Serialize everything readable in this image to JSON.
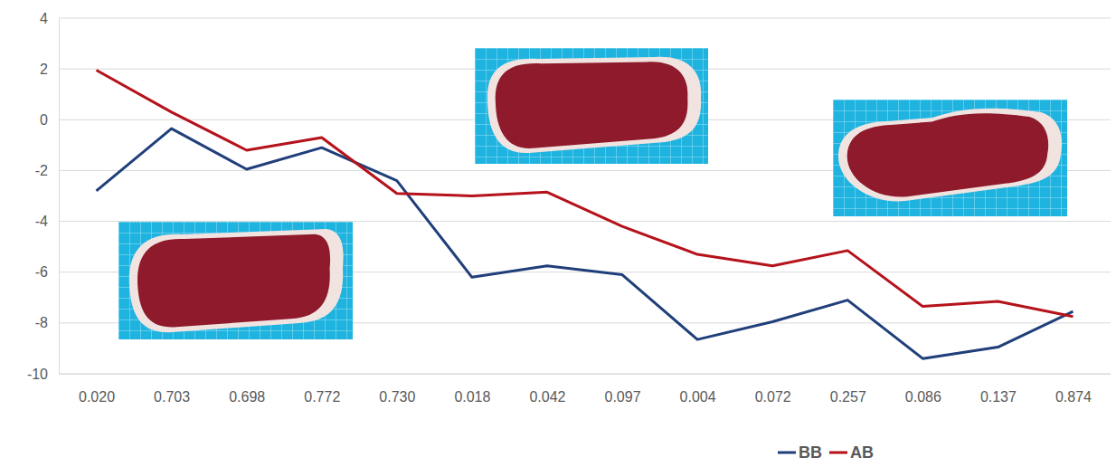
{
  "chart_data": {
    "type": "line",
    "categories": [
      "0.020",
      "0.703",
      "0.698",
      "0.772",
      "0.730",
      "0.018",
      "0.042",
      "0.097",
      "0.004",
      "0.072",
      "0.257",
      "0.086",
      "0.137",
      "0.874"
    ],
    "series": [
      {
        "name": "BB",
        "color": "#203f7a",
        "values": [
          -2.8,
          -0.35,
          -1.95,
          -1.1,
          -2.4,
          -6.2,
          -5.75,
          -6.1,
          -8.65,
          -7.95,
          -7.1,
          -9.4,
          -8.95,
          -7.55
        ]
      },
      {
        "name": "AB",
        "color": "#b5121b",
        "values": [
          1.95,
          0.3,
          -1.2,
          -0.7,
          -2.9,
          -3.0,
          -2.85,
          -4.2,
          -5.3,
          -5.75,
          -5.15,
          -7.35,
          -7.15,
          -7.75
        ]
      }
    ],
    "ylim": [
      -10,
      4
    ],
    "yticks": [
      -10,
      -8,
      -6,
      -4,
      -2,
      0,
      2,
      4
    ],
    "grid": true,
    "legend": "bottom"
  }
}
